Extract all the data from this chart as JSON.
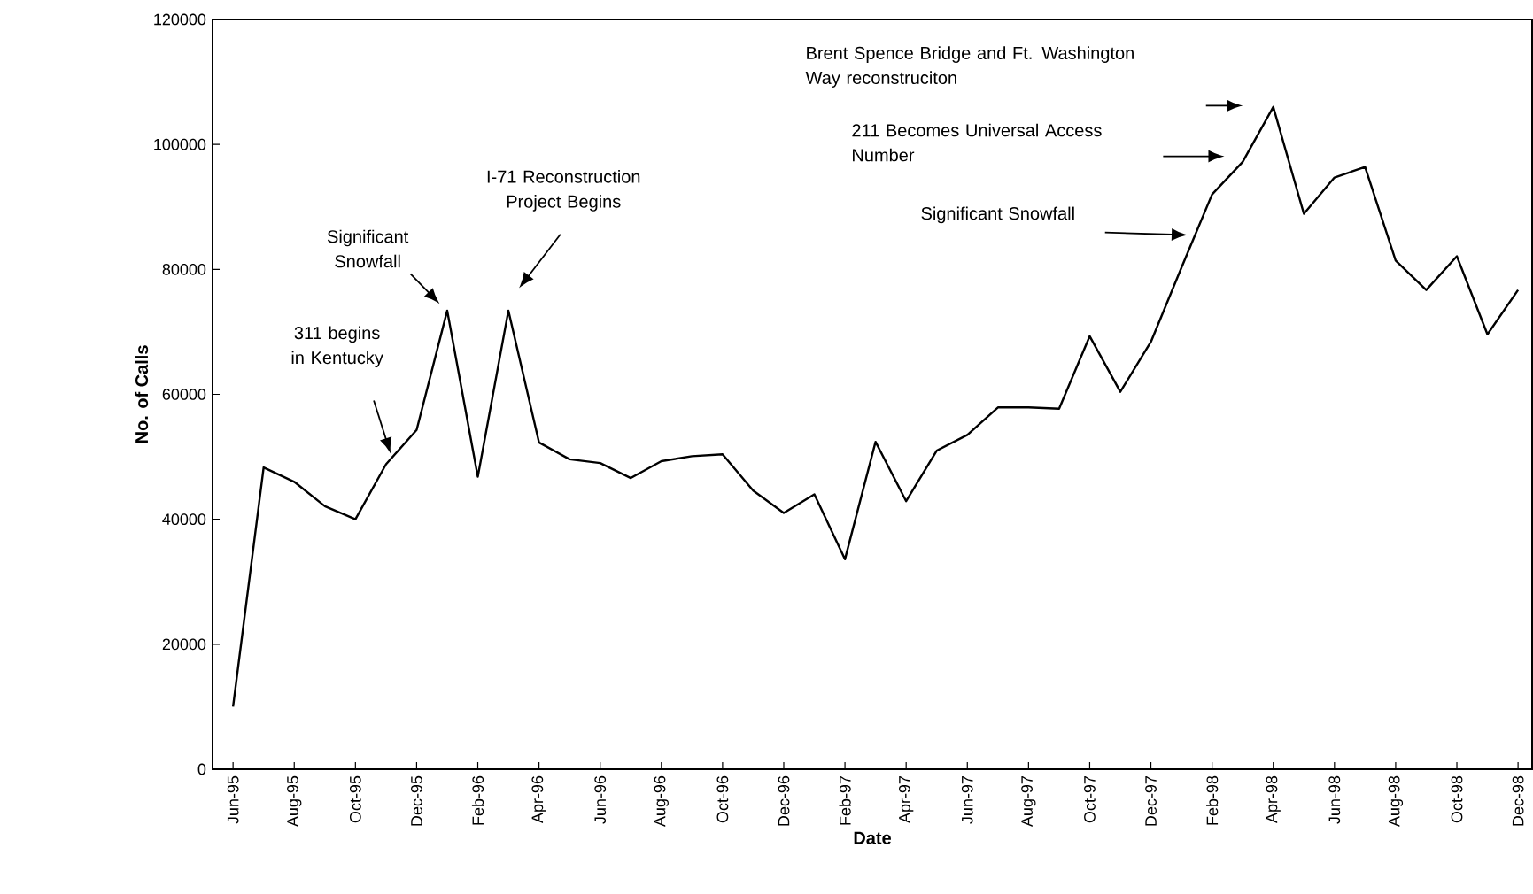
{
  "chart_data": {
    "type": "line",
    "xlabel": "Date",
    "ylabel": "No. of Calls",
    "color": "#000000",
    "categories": [
      "Jun-95",
      null,
      "Aug-95",
      null,
      "Oct-95",
      null,
      "Dec-95",
      null,
      "Feb-96",
      null,
      "Apr-96",
      null,
      "Jun-96",
      null,
      "Aug-96",
      null,
      "Oct-96",
      null,
      "Dec-96",
      null,
      "Feb-97",
      null,
      "Apr-97",
      null,
      "Jun-97",
      null,
      "Aug-97",
      null,
      "Oct-97",
      null,
      "Dec-97",
      null,
      "Feb-98",
      null,
      "Apr-98",
      null,
      "Jun-98",
      null,
      "Aug-98",
      null,
      "Oct-98",
      null,
      "Dec-98"
    ],
    "values": [
      10000,
      48300,
      46000,
      42100,
      40000,
      48800,
      54300,
      73400,
      46800,
      73400,
      52300,
      49600,
      49000,
      46600,
      49300,
      50100,
      50400,
      44600,
      41000,
      44000,
      33600,
      52400,
      42900,
      51000,
      53500,
      57900,
      57900,
      57700,
      69300,
      60400,
      68400,
      80300,
      92000,
      97200,
      106000,
      88900,
      94700,
      96400,
      81400,
      76700,
      82100,
      69600,
      76700
    ],
    "ylim": [
      0,
      120000
    ],
    "yticks": [
      0,
      20000,
      40000,
      60000,
      80000,
      100000,
      120000
    ],
    "annotations": [
      "311 begins in Kentucky",
      "Significant Snowfall",
      "I-71 Reconstruction Project Begins",
      "Significant Snowfall",
      "211 Becomes Universal Access Number",
      "Brent Spence Bridge and Ft. Washington Way reconstruciton"
    ]
  }
}
